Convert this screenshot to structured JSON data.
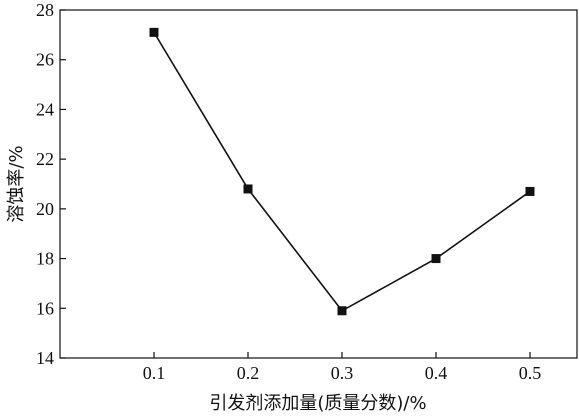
{
  "chart_data": {
    "type": "line",
    "title": "",
    "xlabel": "引发剂添加量(质量分数)/%",
    "ylabel": "溶蚀率/%",
    "x": [
      0.1,
      0.2,
      0.3,
      0.4,
      0.5
    ],
    "x_ticks": [
      "0.1",
      "0.2",
      "0.3",
      "0.4",
      "0.5"
    ],
    "y_ticks": [
      "14",
      "16",
      "18",
      "20",
      "22",
      "24",
      "26",
      "28"
    ],
    "xlim": [
      0.0,
      0.55
    ],
    "ylim": [
      14,
      28
    ],
    "grid": false,
    "legend": "none",
    "series": [
      {
        "values": [
          27.1,
          20.8,
          15.9,
          18.0,
          20.7
        ],
        "color": "#111111",
        "marker": "square"
      }
    ]
  }
}
